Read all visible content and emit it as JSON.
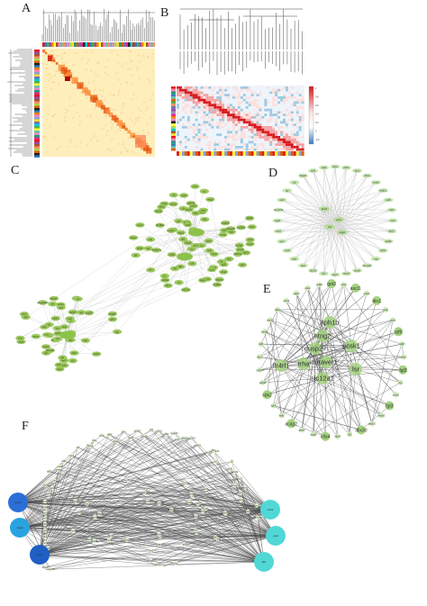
{
  "panels": {
    "a": "A",
    "b": "B",
    "c": "C",
    "d": "D",
    "e": "E",
    "f": "F"
  },
  "colorbar_ticks": [
    "1",
    "0.8",
    "0.6",
    "0.4",
    "0.2",
    "0",
    "-0.2"
  ],
  "panel_e_large": [
    "got2",
    "ancl1",
    "dio1",
    "atf5",
    "fgl3",
    "aph1b",
    "ntng2",
    "dusp27",
    "pcsk1",
    "trha",
    "flr4rl1",
    "uraver1",
    "lsr",
    "slc12a1",
    "fgl3",
    "dlix30",
    "ctla4",
    "acag2",
    "sbk2"
  ],
  "panel_e_small": [
    "ctcs4",
    "pcsk2",
    "acpp",
    "rpmn",
    "mdb7",
    "chsr1",
    "eyc",
    "tmnd1",
    "pbnlo3",
    "grin1f2",
    "tk2",
    "klpn4",
    "ycaq6",
    "gbss3",
    "ks6x",
    "sdc4",
    "slc4a5",
    "gpcsc3",
    "sbc3",
    "cdf4",
    "cbm5a",
    "chrnb3",
    "gkb1",
    "ssxc3",
    "plam2"
  ],
  "panel_d_nodes": [
    "sftp1",
    "ptbs1",
    "dlcc1",
    "olfm1",
    "vssa3",
    "kctd12",
    "ptk5",
    "dtx4",
    "ltrc2",
    "lkp15",
    "tpd52",
    "gfra1",
    "rngl",
    "tbc1d16",
    "mpzl2",
    "ramp1",
    "aqp7",
    "tbr1",
    "fam3c",
    "ptk2",
    "ypfb",
    "sox9",
    "gsm",
    "wnk1",
    "vegfb",
    "fam174b",
    "nrp3",
    "rgn",
    "ctsl",
    "tfap2b",
    "rp2b",
    "cpa4"
  ],
  "panel_d_center": [
    "foxo4",
    "peh1",
    "tlc2",
    "rpgb1"
  ],
  "panel_f_hubs": [
    "fmeda",
    "cpgab",
    "fmpxc",
    "rdh12",
    "psed",
    "dlb1"
  ],
  "panel_f_labels": [
    "wnt5",
    "ampl1",
    "dnq",
    "atf3",
    "fos",
    "cdc28",
    "nsf",
    "pcsk5",
    "kctd2",
    "btg2",
    "fgf8",
    "ube3a",
    "ndrg1",
    "egr1",
    "myc",
    "ier2",
    "klf4",
    "junb",
    "atf4",
    "rgs2",
    "nr4a1",
    "nr4a2",
    "dusp1",
    "socs3",
    "cebpd",
    "gadd45b",
    "zfp36",
    "ppp1r15a",
    "klf6",
    "ier3",
    "tnfaip3",
    "hspa1a",
    "mcl1",
    "plk2",
    "arc",
    "npas4",
    "bdnf",
    "vgf",
    "cyr61",
    "ctgf",
    "serpine1",
    "thbs1",
    "lif",
    "il6",
    "ccl2",
    "cxcl1",
    "sik1",
    "per1",
    "trib1",
    "errfi1",
    "spry2",
    "dusp6",
    "etv5",
    "egr2",
    "egr3",
    "fosb",
    "jun",
    "nfil3",
    "crem",
    "maff",
    "atf5",
    "hes1",
    "id2",
    "id3",
    "sox4",
    "tob1",
    "txnip",
    "ddit4",
    "sgk1",
    "gem",
    "rasd1",
    "arrdc3",
    "cited2",
    "klf2",
    "csrnp1",
    "pdk4",
    "angptl4",
    "ucp2",
    "fkbp5",
    "tsc22d3",
    "zbtb16",
    "per2",
    "bhlhe40",
    "dbp",
    "tef",
    "hlf",
    "nr1d1",
    "nr1d2",
    "cry1",
    "cry2",
    "arntl",
    "clock",
    "npas2",
    "rorc",
    "ciart",
    "chrono"
  ],
  "panel_c_nodes": [
    "gab2",
    "sfrp1",
    "pdk",
    "bcl2",
    "fgr",
    "nfil",
    "tdk",
    "c1s",
    "mmp2",
    "lox",
    "col1a1",
    "col3a1",
    "fn1",
    "sparc",
    "timp1",
    "lum",
    "dcn",
    "postn",
    "thbs2",
    "vcan",
    "bgn",
    "aspn",
    "ogn",
    "fbln1",
    "mgp",
    "comp",
    "cilp",
    "prelp",
    "fmod",
    "kera",
    "chad",
    "tnmd",
    "scx",
    "mkx",
    "egr1",
    "tnc",
    "ecm2",
    "col5a1",
    "col6a1",
    "col12a1",
    "col14a1",
    "fbn1",
    "eln",
    "mfap5",
    "ltbp2",
    "loxl1",
    "pcolce",
    "sfrp2",
    "wisp2",
    "igf2",
    "h19",
    "dlk1",
    "meg3",
    "cdkn1c",
    "peg3",
    "plagl1",
    "mest",
    "grb10",
    "igf2r",
    "slc38a4",
    "zim1",
    "nnat",
    "ndn",
    "magel2",
    "snrpn",
    "ube3a",
    "atp10a",
    "gabrb3",
    "herc2",
    "oca2",
    "cyfip1",
    "nipa1",
    "nipa2",
    "tubgcp5",
    "chrfam7a",
    "arhgap11b",
    "golga8",
    "apba2",
    "ndnl2",
    "tjp1",
    "chrna7",
    "otud7a",
    "klf13",
    "fan1",
    "mtmr10",
    "trpm1",
    "avp",
    "oxt",
    "pomc",
    "crh",
    "trh",
    "gnrh1",
    "ghrh",
    "sst",
    "npy",
    "agrp",
    "cartpt",
    "hcrt",
    "pmch",
    "tac1",
    "tac2",
    "kiss1",
    "gal",
    "penk",
    "pdyn",
    "nts",
    "cck",
    "vip",
    "adcyap1",
    "grp",
    "nmb",
    "nmu",
    "nms",
    "qrfp",
    "npvf",
    "npw"
  ]
}
